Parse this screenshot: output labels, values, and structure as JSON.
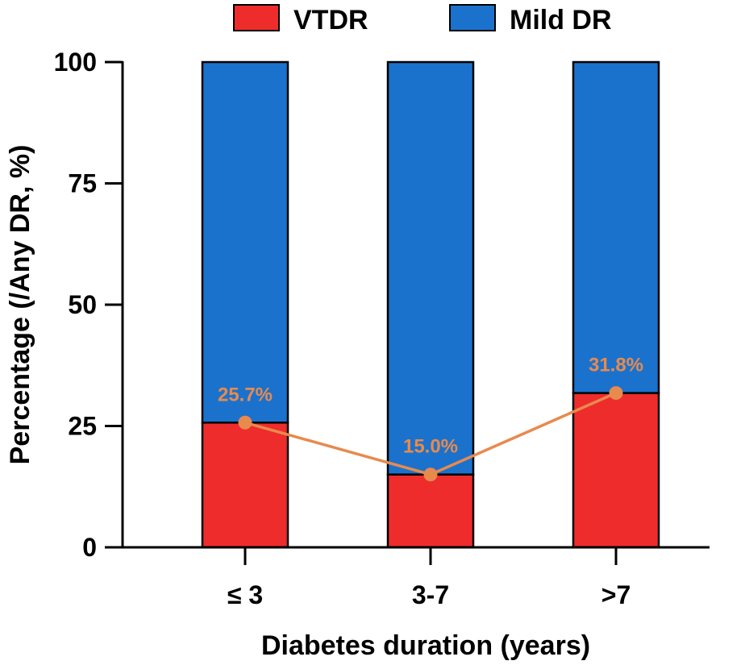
{
  "chart_data": {
    "type": "bar",
    "stacked": true,
    "categories": [
      "≤ 3",
      "3-7",
      ">7"
    ],
    "series": [
      {
        "name": "VTDR",
        "values": [
          25.7,
          15.0,
          31.8
        ],
        "color": "#ee2c2c"
      },
      {
        "name": "Mild DR",
        "values": [
          74.3,
          85.0,
          68.2
        ],
        "color": "#1b72cc"
      }
    ],
    "line": {
      "values": [
        25.7,
        15.0,
        31.8
      ],
      "labels": [
        "25.7%",
        "15.0%",
        "31.8%"
      ],
      "color": "#e88a4e"
    },
    "xlabel": "Diabetes duration (years)",
    "ylabel": "Percentage (/Any DR, %)",
    "ylim": [
      0,
      100
    ],
    "yticks": [
      0,
      25,
      50,
      75,
      100
    ],
    "legend": {
      "position": "top",
      "entries": [
        "VTDR",
        "Mild DR"
      ]
    }
  }
}
